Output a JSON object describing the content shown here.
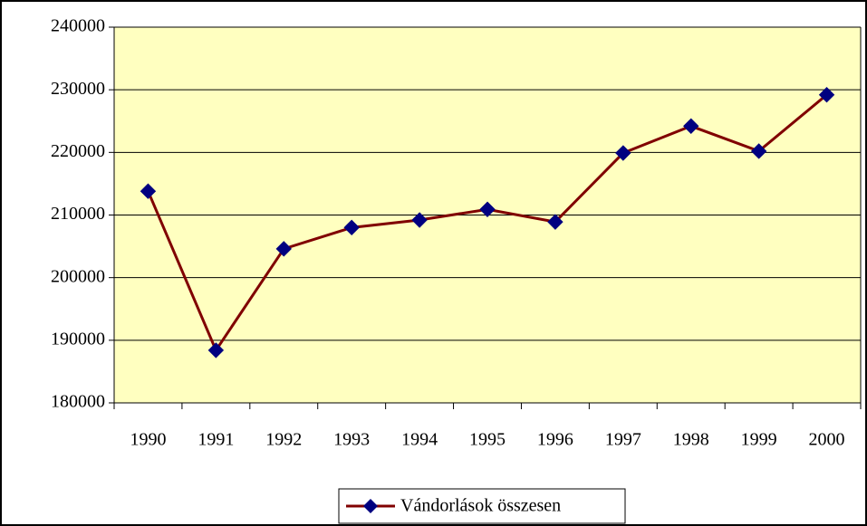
{
  "chart_data": {
    "type": "line",
    "categories": [
      "1990",
      "1991",
      "1992",
      "1993",
      "1994",
      "1995",
      "1996",
      "1997",
      "1998",
      "1999",
      "2000"
    ],
    "series": [
      {
        "name": "Vándorlások összesen",
        "color": "#800000",
        "marker_color": "#000080",
        "values": [
          213800,
          188400,
          204600,
          208000,
          209200,
          210900,
          208900,
          219900,
          224200,
          220200,
          229200
        ]
      }
    ],
    "ylim": [
      180000,
      240000
    ],
    "yticks": [
      180000,
      190000,
      200000,
      210000,
      220000,
      230000,
      240000
    ],
    "grid": true,
    "legend": "bottom",
    "plot_background": "#ffffc0"
  }
}
